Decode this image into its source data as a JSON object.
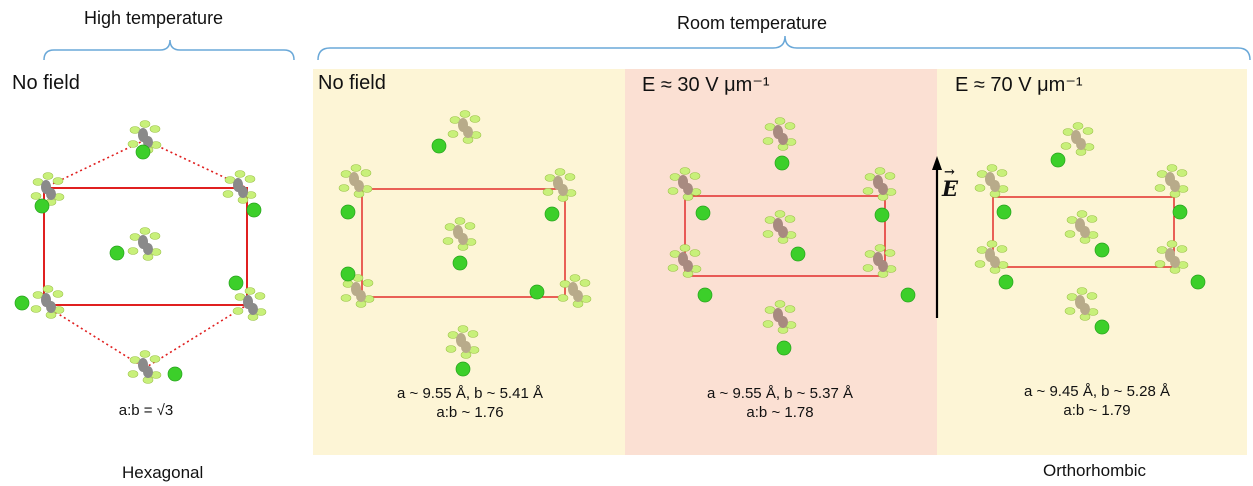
{
  "headers": {
    "high_temperature": "High temperature",
    "room_temperature": "Room temperature"
  },
  "panels": [
    {
      "field_label": "No field",
      "params": [],
      "ratio_text": "a:b = √3",
      "bg_color": "#ffffff"
    },
    {
      "field_label": "No field",
      "params": [
        "a ~ 9.55 Å, b ~ 5.41 Å"
      ],
      "ratio_text": "a:b ~ 1.76",
      "bg_color": "#fdf5d6"
    },
    {
      "field_label": "E ≈ 30 V μm⁻¹",
      "params": [
        "a ~ 9.55 Å, b ~ 5.37 Å"
      ],
      "ratio_text": "a:b ~ 1.78",
      "bg_color": "#fbe0d3"
    },
    {
      "field_label": "E ≈ 70 V μm⁻¹",
      "params": [
        "a ~ 9.45 Å, b ~ 5.28 Å"
      ],
      "ratio_text": "a:b ~ 1.79",
      "bg_color": "#fdf5d6"
    }
  ],
  "phases": {
    "left": "Hexagonal",
    "right": "Orthorhombic"
  },
  "field_arrow_label": "E",
  "colors": {
    "cell_outline": "#e02020",
    "brace": "#6aa8d8",
    "chlorine": "#3ccf2a",
    "fluorine": "#c8f07a",
    "carbon_gray": "#8a8a8a",
    "carbon_tan": "#b8ab8a",
    "carbon_rose": "#a88a80"
  }
}
